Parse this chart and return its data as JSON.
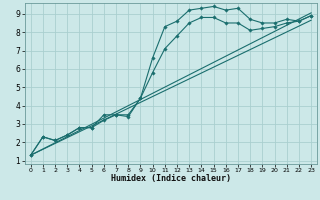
{
  "xlabel": "Humidex (Indice chaleur)",
  "bg_color": "#cce8e8",
  "line_color": "#1a6e6e",
  "grid_color": "#aacfcf",
  "xlim": [
    -0.5,
    23.5
  ],
  "ylim": [
    0.8,
    9.6
  ],
  "xticks": [
    0,
    1,
    2,
    3,
    4,
    5,
    6,
    7,
    8,
    9,
    10,
    11,
    12,
    13,
    14,
    15,
    16,
    17,
    18,
    19,
    20,
    21,
    22,
    23
  ],
  "yticks": [
    1,
    2,
    3,
    4,
    5,
    6,
    7,
    8,
    9
  ],
  "line1_x": [
    0,
    1,
    2,
    3,
    4,
    5,
    6,
    7,
    8,
    9,
    10,
    11,
    12,
    13,
    14,
    15,
    16,
    17,
    18,
    19,
    20,
    21,
    22,
    23
  ],
  "line1_y": [
    1.3,
    2.3,
    2.1,
    2.4,
    2.8,
    2.8,
    3.5,
    3.5,
    3.5,
    4.4,
    6.6,
    8.3,
    8.6,
    9.2,
    9.3,
    9.4,
    9.2,
    9.3,
    8.7,
    8.5,
    8.5,
    8.7,
    8.6,
    8.9
  ],
  "line2_x": [
    0,
    1,
    2,
    3,
    4,
    5,
    6,
    7,
    8,
    9,
    10,
    11,
    12,
    13,
    14,
    15,
    16,
    17,
    18,
    19,
    20,
    21,
    22,
    23
  ],
  "line2_y": [
    1.3,
    2.3,
    2.1,
    2.4,
    2.8,
    2.8,
    3.2,
    3.5,
    3.4,
    4.4,
    5.8,
    7.1,
    7.8,
    8.5,
    8.8,
    8.8,
    8.5,
    8.5,
    8.1,
    8.2,
    8.3,
    8.5,
    8.6,
    8.9
  ],
  "line3_x": [
    0,
    23
  ],
  "line3_y": [
    1.3,
    9.05
  ],
  "line4_x": [
    0,
    23
  ],
  "line4_y": [
    1.3,
    8.65
  ]
}
